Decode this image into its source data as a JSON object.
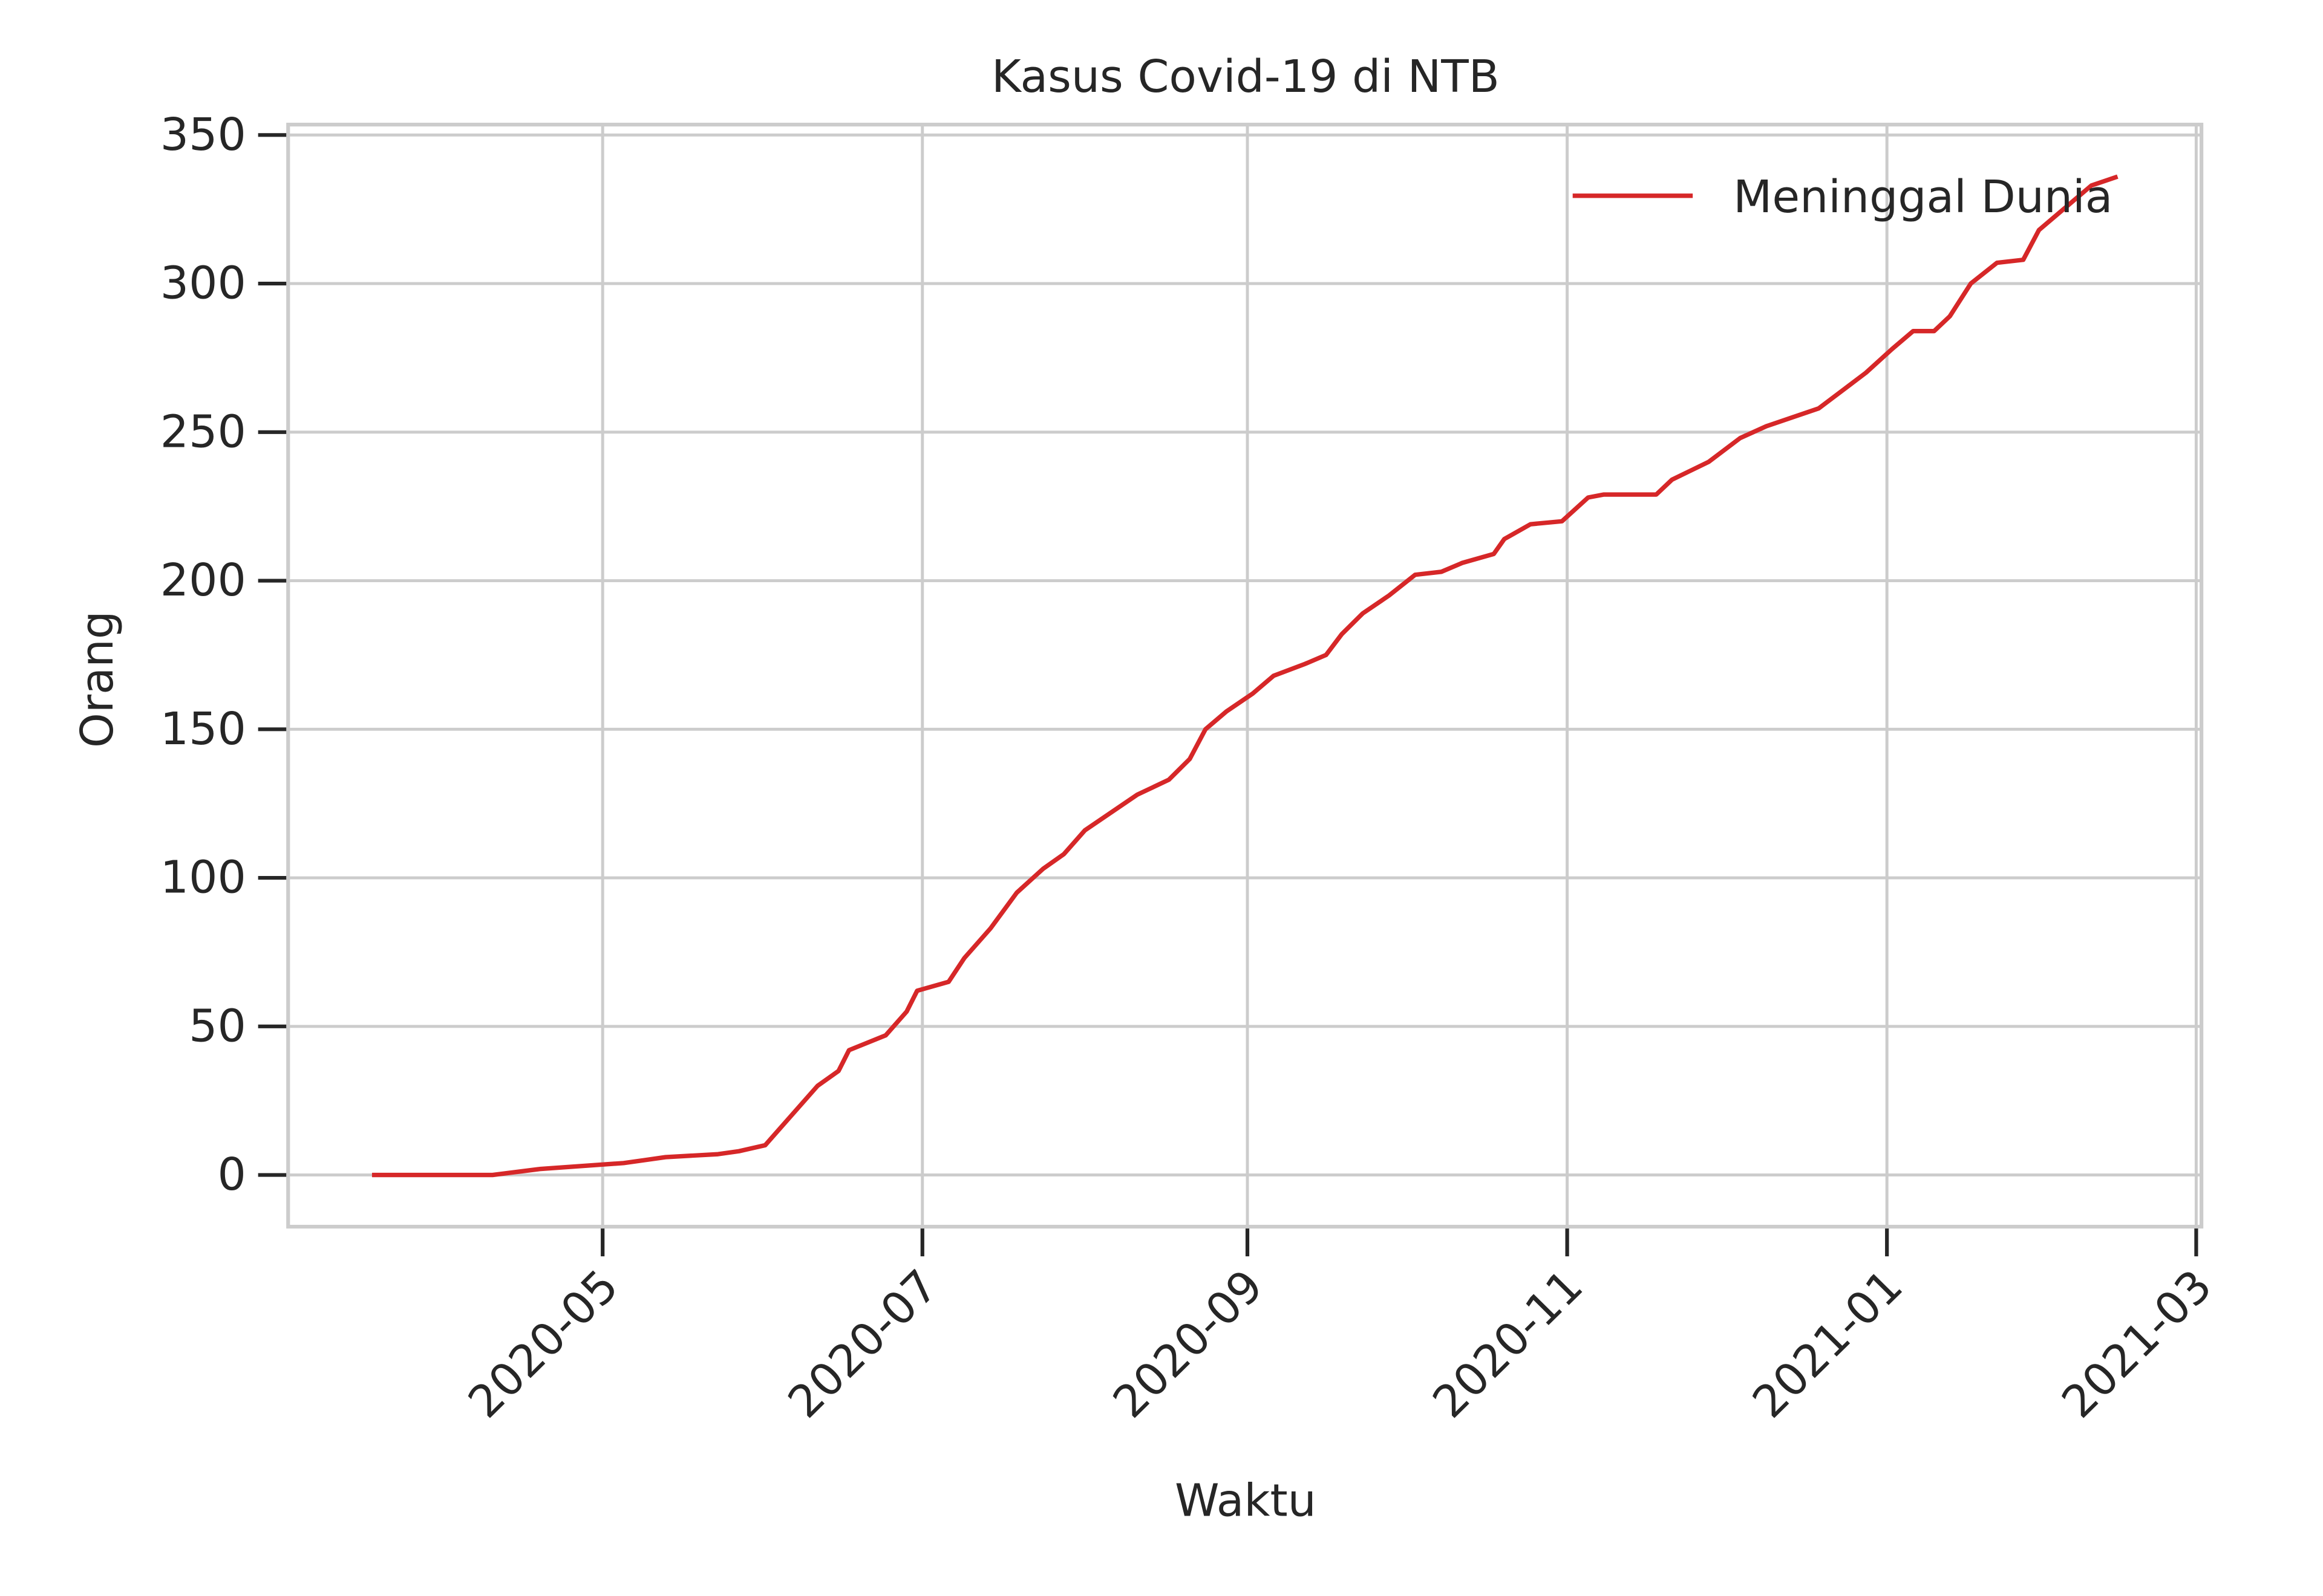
{
  "chart_data": {
    "type": "line",
    "title": "Kasus Covid-19 di NTB",
    "x_label": "Waktu",
    "y_label": "Orang",
    "x": [
      "2020-03-18",
      "2020-04-10",
      "2020-04-19",
      "2020-05-05",
      "2020-05-09",
      "2020-05-13",
      "2020-05-23",
      "2020-05-27",
      "2020-06-01",
      "2020-06-06",
      "2020-06-11",
      "2020-06-15",
      "2020-06-17",
      "2020-06-24",
      "2020-06-28",
      "2020-06-30",
      "2020-07-06",
      "2020-07-09",
      "2020-07-14",
      "2020-07-19",
      "2020-07-24",
      "2020-07-28",
      "2020-08-01",
      "2020-08-06",
      "2020-08-11",
      "2020-08-17",
      "2020-08-21",
      "2020-08-24",
      "2020-08-28",
      "2020-09-02",
      "2020-09-06",
      "2020-09-12",
      "2020-09-16",
      "2020-09-19",
      "2020-09-23",
      "2020-09-28",
      "2020-10-03",
      "2020-10-08",
      "2020-10-12",
      "2020-10-18",
      "2020-10-20",
      "2020-10-25",
      "2020-10-31",
      "2020-11-05",
      "2020-11-08",
      "2020-11-18",
      "2020-11-21",
      "2020-11-28",
      "2020-12-04",
      "2020-12-09",
      "2020-12-14",
      "2020-12-19",
      "2020-12-25",
      "2020-12-28",
      "2021-01-02",
      "2021-01-06",
      "2021-01-10",
      "2021-01-13",
      "2021-01-17",
      "2021-01-22",
      "2021-01-27",
      "2021-01-30",
      "2021-02-03",
      "2021-02-09",
      "2021-02-14"
    ],
    "series": [
      {
        "name": "Meninggal Dunia",
        "color": "#d62728",
        "values": [
          0,
          0,
          2,
          4,
          5,
          6,
          7,
          8,
          10,
          20,
          30,
          35,
          42,
          47,
          55,
          62,
          65,
          73,
          83,
          95,
          103,
          108,
          116,
          122,
          128,
          133,
          140,
          150,
          156,
          162,
          168,
          172,
          175,
          182,
          189,
          195,
          202,
          203,
          206,
          209,
          214,
          219,
          220,
          228,
          229,
          229,
          234,
          240,
          248,
          252,
          255,
          258,
          266,
          270,
          278,
          284,
          284,
          289,
          300,
          307,
          308,
          318,
          324,
          333,
          336
        ]
      }
    ],
    "xlim": [
      "2020-03-02",
      "2021-03-02"
    ],
    "xticks": [
      "2020-05",
      "2020-07",
      "2020-09",
      "2020-11",
      "2021-01",
      "2021-03"
    ],
    "ylim": [
      -17.4,
      353.5
    ],
    "yticks": [
      0,
      50,
      100,
      150,
      200,
      250,
      300,
      350
    ],
    "grid": true,
    "legend": "upper right"
  }
}
